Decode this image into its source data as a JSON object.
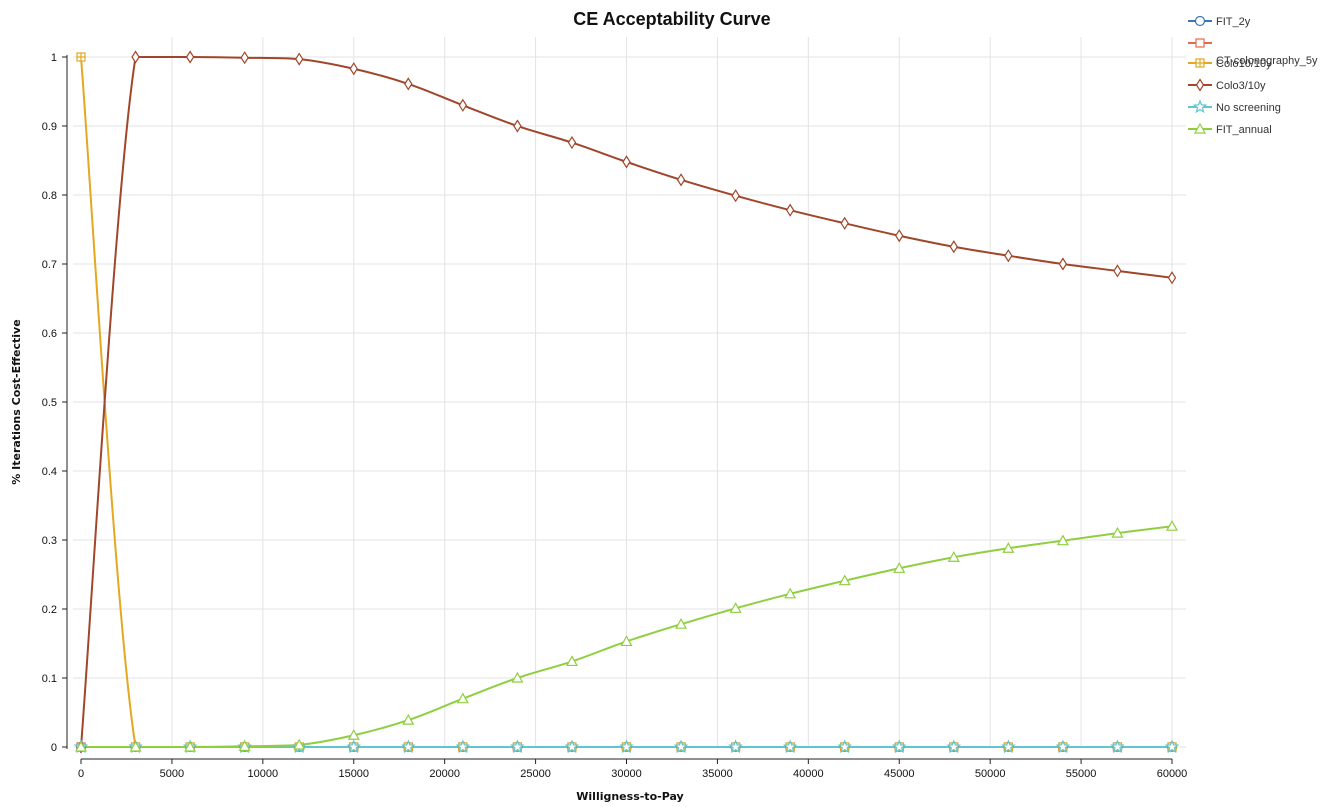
{
  "chart_data": {
    "type": "line",
    "title": "CE Acceptability Curve",
    "xlabel": "Willigness-to-Pay",
    "ylabel": "% Iterations Cost-Effective",
    "xlim": [
      0,
      60000
    ],
    "ylim": [
      0,
      1
    ],
    "xticks": [
      0,
      5000,
      10000,
      15000,
      20000,
      25000,
      30000,
      35000,
      40000,
      45000,
      50000,
      55000,
      60000
    ],
    "xtick_labels": [
      "0",
      "5000",
      "10000",
      "15000",
      "20000",
      "25000",
      "30000",
      "35000",
      "40000",
      "45000",
      "50000",
      "55000",
      "60000"
    ],
    "yticks": [
      0,
      0.1,
      0.2,
      0.3,
      0.4,
      0.5,
      0.6,
      0.7,
      0.8,
      0.9,
      1
    ],
    "ytick_labels": [
      "0",
      "0.1",
      "0.2",
      "0.3",
      "0.4",
      "0.5",
      "0.6",
      "0.7",
      "0.8",
      "0.9",
      "1"
    ],
    "grid": true,
    "legend_position": "right",
    "x": [
      0,
      3000,
      6000,
      9000,
      12000,
      15000,
      18000,
      21000,
      24000,
      27000,
      30000,
      33000,
      36000,
      39000,
      42000,
      45000,
      48000,
      51000,
      54000,
      57000,
      60000
    ],
    "series": [
      {
        "name": "FIT_2y",
        "color": "#3a76b2",
        "marker": "circle",
        "values": [
          0,
          0,
          0,
          0,
          0,
          0,
          0,
          0,
          0,
          0,
          0,
          0,
          0,
          0,
          0,
          0,
          0,
          0,
          0,
          0,
          0
        ]
      },
      {
        "name": "CT-colonography_5y",
        "color": "#e8684a",
        "marker": "square",
        "values": [
          0,
          0,
          0,
          0,
          0,
          0,
          0,
          0,
          0,
          0,
          0,
          0,
          0,
          0,
          0,
          0,
          0,
          0,
          0,
          0,
          0
        ]
      },
      {
        "name": "Colo10/10y",
        "color": "#e3a820",
        "marker": "plus-square",
        "values": [
          1,
          0,
          0,
          0,
          0,
          0,
          0,
          0,
          0,
          0,
          0,
          0,
          0,
          0,
          0,
          0,
          0,
          0,
          0,
          0,
          0
        ]
      },
      {
        "name": "Colo3/10y",
        "color": "#a0462a",
        "marker": "diamond",
        "values": [
          0,
          1,
          1,
          0.999,
          0.997,
          0.983,
          0.961,
          0.93,
          0.9,
          0.876,
          0.848,
          0.822,
          0.799,
          0.778,
          0.759,
          0.741,
          0.725,
          0.712,
          0.7,
          0.69,
          0.68
        ]
      },
      {
        "name": "No screening",
        "color": "#62c4cc",
        "marker": "star",
        "values": [
          0,
          0,
          0,
          0,
          0,
          0,
          0,
          0,
          0,
          0,
          0,
          0,
          0,
          0,
          0,
          0,
          0,
          0,
          0,
          0,
          0
        ]
      },
      {
        "name": "FIT_annual",
        "color": "#8fcf3f",
        "marker": "triangle",
        "values": [
          0,
          0,
          0,
          0.001,
          0.003,
          0.017,
          0.039,
          0.07,
          0.1,
          0.124,
          0.153,
          0.178,
          0.201,
          0.222,
          0.241,
          0.259,
          0.275,
          0.288,
          0.299,
          0.31,
          0.32
        ]
      }
    ]
  }
}
